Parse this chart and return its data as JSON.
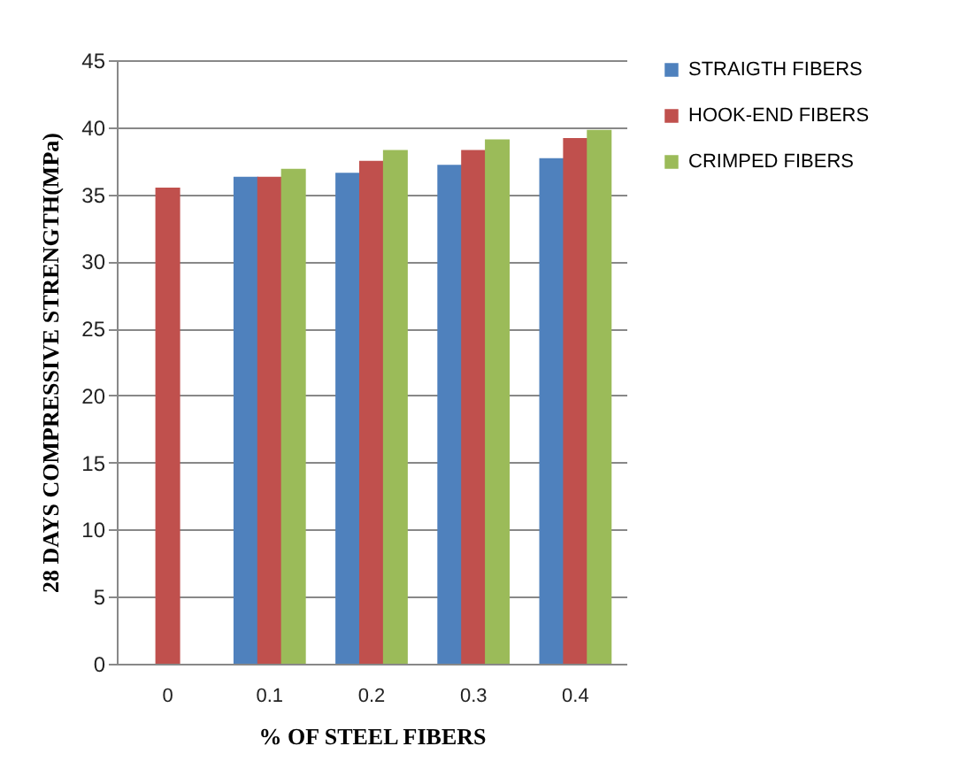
{
  "chart_data": {
    "type": "bar",
    "xlabel": "% OF STEEL FIBERS",
    "ylabel": "28 DAYS COMPRESSIVE STRENGTH(MPa)",
    "categories": [
      "0",
      "0.1",
      "0.2",
      "0.3",
      "0.4"
    ],
    "series": [
      {
        "name": "STRAIGTH FIBERS",
        "color": "#4f81bd",
        "values": [
          null,
          36.3,
          36.6,
          37.2,
          37.7
        ]
      },
      {
        "name": "HOOK-END FIBERS",
        "color": "#c0504d",
        "values": [
          35.5,
          36.3,
          37.5,
          38.3,
          39.2
        ]
      },
      {
        "name": "CRIMPED FIBERS",
        "color": "#9bbb59",
        "values": [
          null,
          36.9,
          38.3,
          39.1,
          39.8
        ]
      }
    ],
    "ylim": [
      0,
      45
    ],
    "yticks": [
      0,
      5,
      10,
      15,
      20,
      25,
      30,
      35,
      40,
      45
    ],
    "grid": "y",
    "legend": "right"
  }
}
